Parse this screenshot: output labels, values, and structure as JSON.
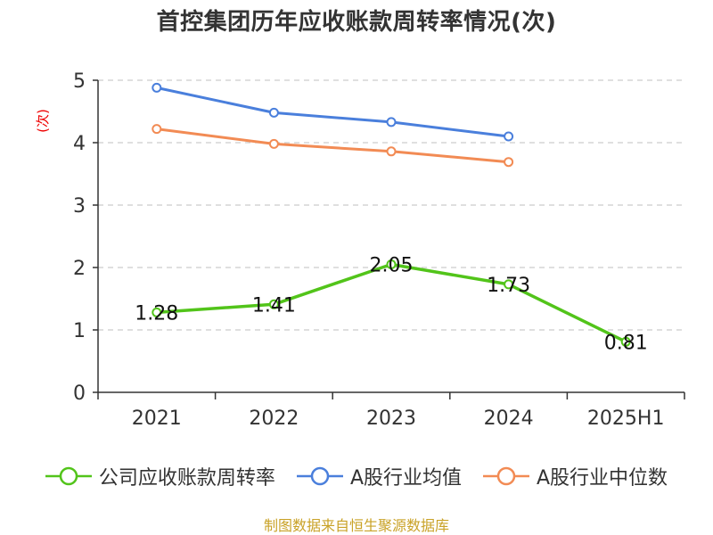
{
  "title": "首控集团历年应收账款周转率情况(次)",
  "ylabel": "(次)",
  "source": "制图数据来自恒生聚源数据库",
  "colors": {
    "company": "#52c41a",
    "average": "#4a7fdc",
    "median": "#f28b54",
    "grid": "#cccccc",
    "axis": "#333333"
  },
  "chart_data": {
    "type": "line",
    "title": "首控集团历年应收账款周转率情况(次)",
    "xlabel": "",
    "ylabel": "(次)",
    "categories": [
      "2021",
      "2022",
      "2023",
      "2024",
      "2025H1"
    ],
    "ylim": [
      0,
      5
    ],
    "yticks": [
      0,
      1,
      2,
      3,
      4,
      5
    ],
    "grid": true,
    "legend_position": "bottom",
    "series": [
      {
        "name": "公司应收账款周转率",
        "values": [
          1.28,
          1.41,
          2.05,
          1.73,
          0.81
        ],
        "labels": [
          "1.28",
          "1.41",
          "2.05",
          "1.73",
          "0.81"
        ],
        "color": "#52c41a",
        "show_labels": true
      },
      {
        "name": "A股行业均值",
        "values": [
          4.88,
          4.48,
          4.33,
          4.1,
          null
        ],
        "color": "#4a7fdc",
        "show_labels": false
      },
      {
        "name": "A股行业中位数",
        "values": [
          4.22,
          3.98,
          3.86,
          3.69,
          null
        ],
        "color": "#f28b54",
        "show_labels": false
      }
    ]
  }
}
